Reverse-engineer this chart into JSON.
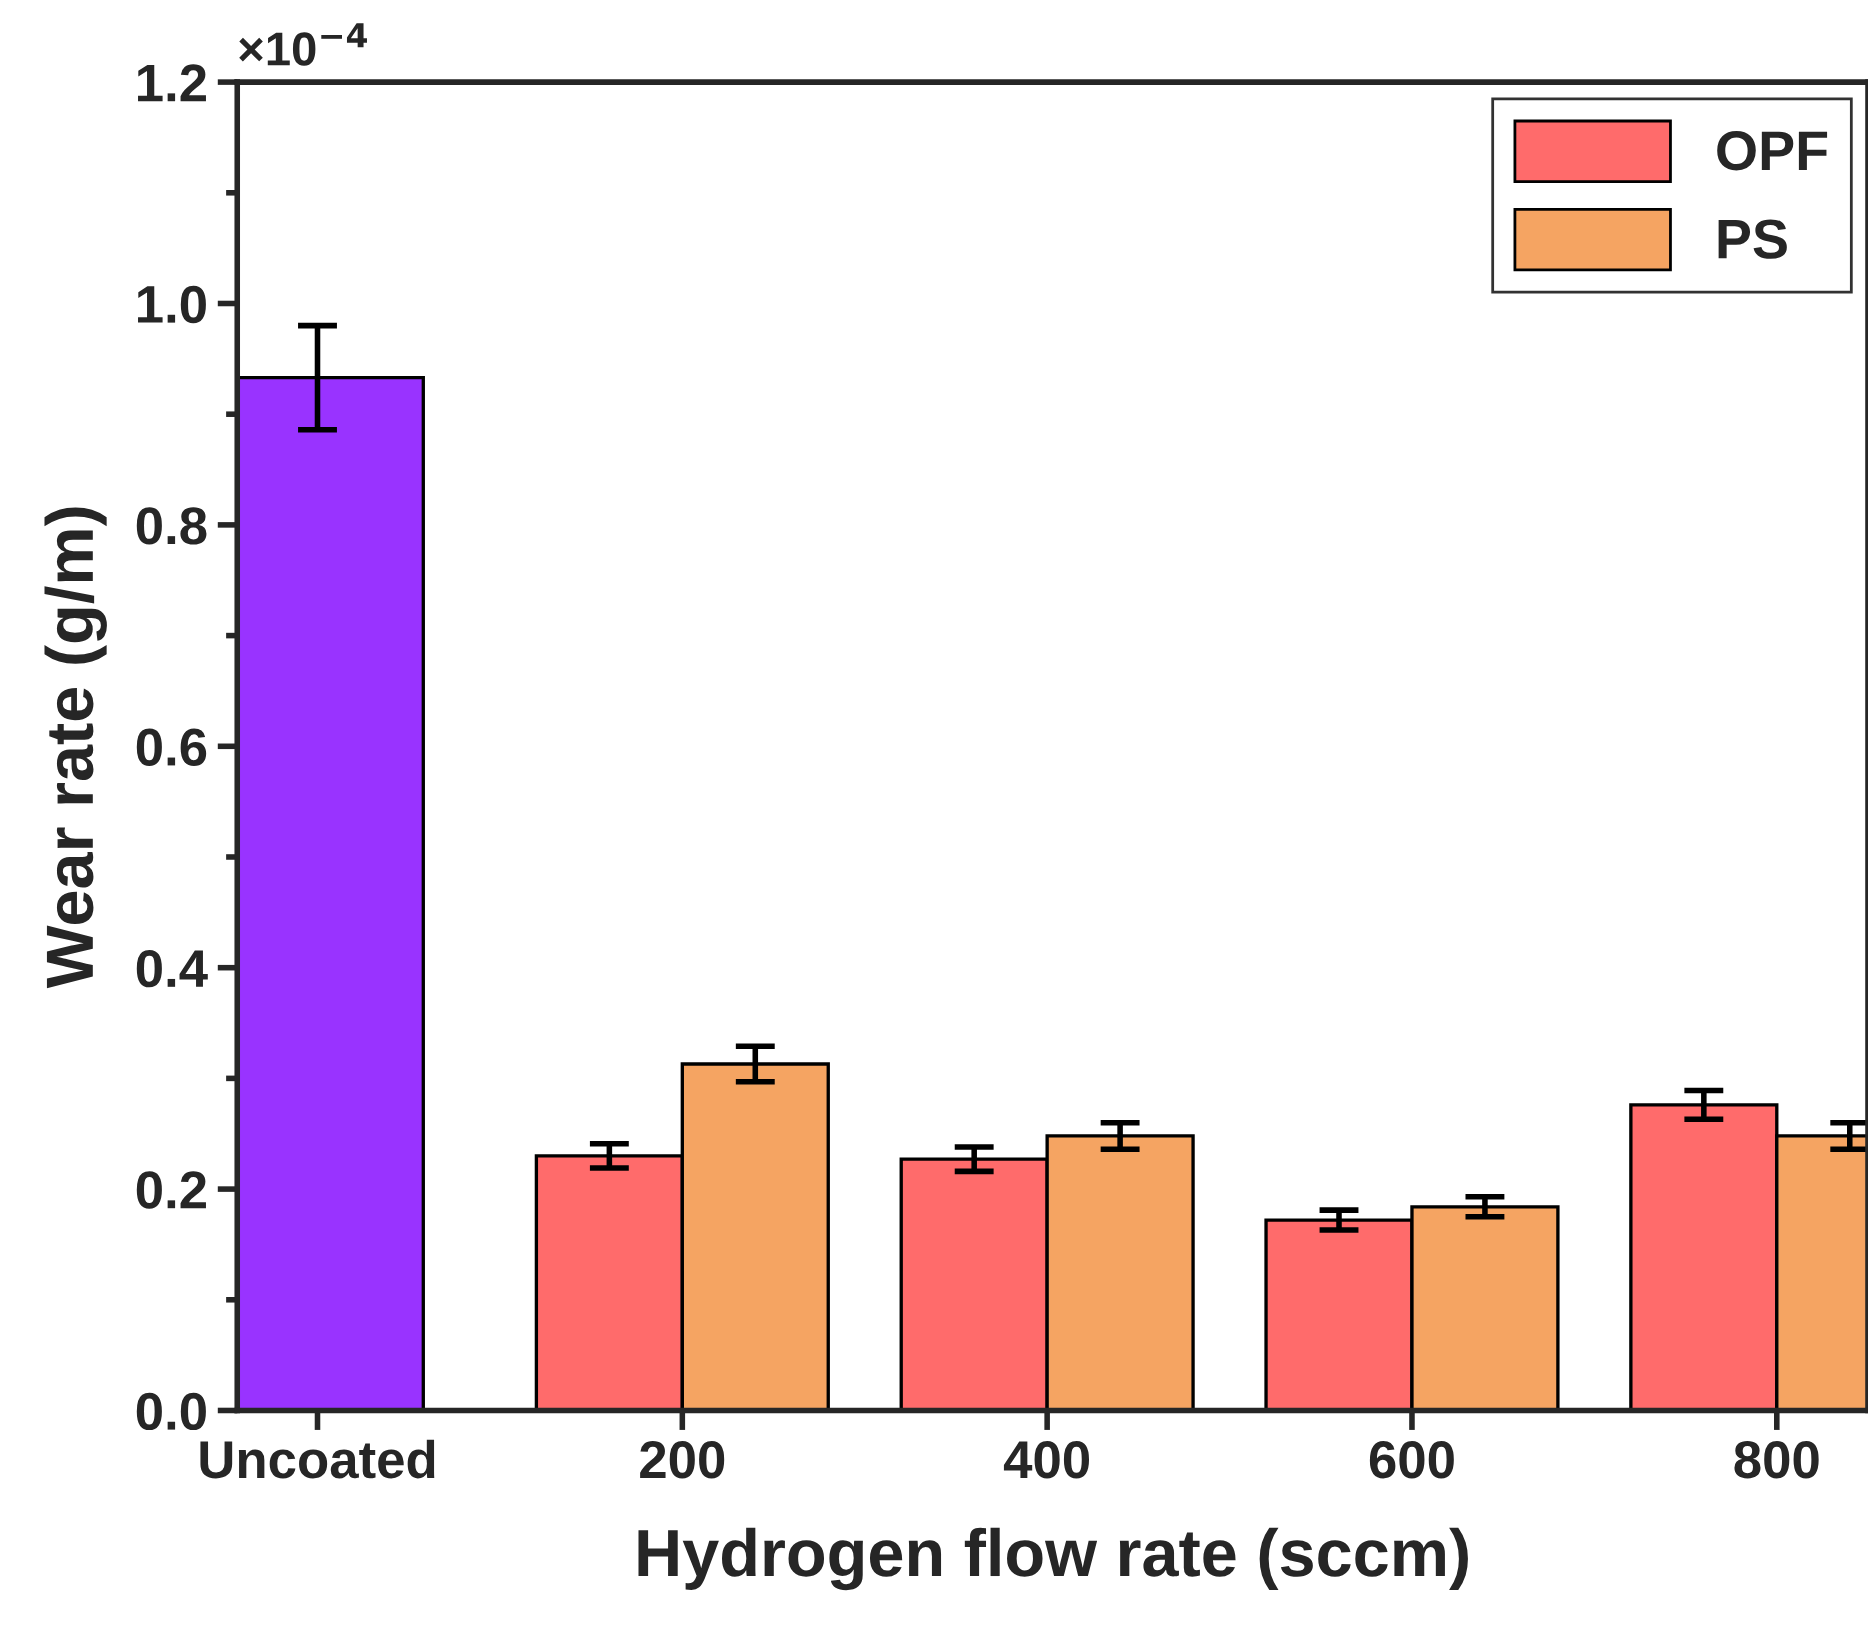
{
  "chart_data": {
    "type": "bar",
    "xlabel": "Hydrogen flow rate (sccm)",
    "ylabel": "Wear rate (g/m)",
    "categories": [
      "Uncoated",
      "200",
      "400",
      "600",
      "800"
    ],
    "series": [
      {
        "color": "#9933ff",
        "values": [
          0.933,
          null,
          null,
          null,
          null
        ],
        "errors": [
          0.047,
          null,
          null,
          null,
          null
        ]
      },
      {
        "name": "OPF",
        "color": "#ff6b6b",
        "values": [
          null,
          0.23,
          0.227,
          0.172,
          0.276
        ],
        "errors": [
          null,
          0.011,
          0.011,
          0.009,
          0.013
        ]
      },
      {
        "name": "PS",
        "color": "#f5a462",
        "values": [
          null,
          0.313,
          0.248,
          0.184,
          0.248
        ],
        "errors": [
          null,
          0.016,
          0.012,
          0.009,
          0.012
        ]
      }
    ],
    "ylim": [
      0,
      1.2
    ],
    "yticks": [
      {
        "value": 0,
        "label": "0.0"
      },
      0.2,
      0.4,
      0.6,
      0.8,
      {
        "value": 1,
        "label": "1.0"
      },
      1.2
    ],
    "annotations": [
      "×10$^{−4}$"
    ],
    "legend": "top right",
    "grid": false
  }
}
